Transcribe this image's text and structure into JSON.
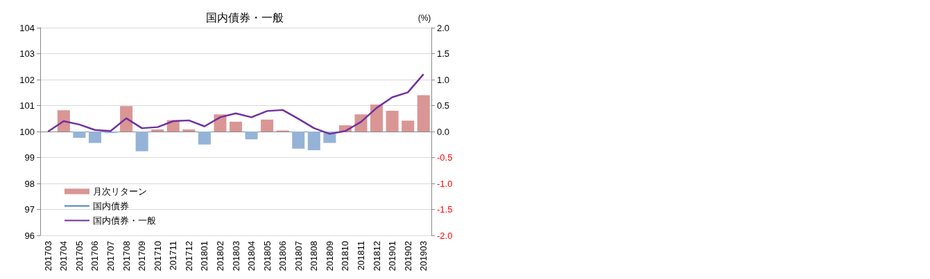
{
  "chart_data": {
    "type": "bar",
    "title": "国内債券・一般",
    "y2label": "(%)",
    "categories": [
      "201703",
      "201704",
      "201705",
      "201706",
      "201707",
      "201708",
      "201709",
      "201710",
      "201711",
      "201712",
      "201801",
      "201802",
      "201803",
      "201804",
      "201805",
      "201806",
      "201807",
      "201808",
      "201809",
      "201810",
      "201811",
      "201812",
      "201901",
      "201902",
      "201903"
    ],
    "series": [
      {
        "name": "月次リターン",
        "axis": "y2",
        "color": "#d99694",
        "colors": [
          "#d99694",
          "#d99694",
          "#95b3d7",
          "#95b3d7",
          "#95b3d7",
          "#d99694",
          "#95b3d7",
          "#d99694",
          "#d99694",
          "#d99694",
          "#95b3d7",
          "#d99694",
          "#d99694",
          "#95b3d7",
          "#d99694",
          "#d99694",
          "#95b3d7",
          "#95b3d7",
          "#95b3d7",
          "#d99694",
          "#d99694",
          "#d99694",
          "#d99694",
          "#d99694",
          "#d99694"
        ],
        "values": [
          null,
          0.41,
          -0.12,
          -0.22,
          -0.03,
          0.49,
          -0.38,
          0.04,
          0.22,
          0.04,
          -0.25,
          0.33,
          0.19,
          -0.15,
          0.23,
          0.02,
          -0.33,
          -0.36,
          -0.22,
          0.12,
          0.33,
          0.52,
          0.4,
          0.21,
          0.7
        ]
      },
      {
        "type": "line",
        "name": "国内債券",
        "color": "#4f81bd",
        "values": [
          null,
          null,
          null,
          null,
          null,
          null,
          null,
          null,
          null,
          null,
          null,
          null,
          null,
          null,
          null,
          null,
          null,
          null,
          null,
          null,
          null,
          null,
          null,
          null,
          null
        ]
      },
      {
        "type": "line",
        "name": "国内債券・一般",
        "color": "#7030a0",
        "values": [
          100,
          100.4,
          100.27,
          100.06,
          100.02,
          100.51,
          100.13,
          100.17,
          100.4,
          100.43,
          100.2,
          100.55,
          100.7,
          100.55,
          100.79,
          100.83,
          100.49,
          100.13,
          99.91,
          100.02,
          100.37,
          100.91,
          101.32,
          101.51,
          102.21
        ]
      }
    ],
    "ylim": [
      96,
      104
    ],
    "yticks": [
      96,
      97,
      98,
      99,
      100,
      101,
      102,
      103,
      104
    ],
    "y2lim": [
      -2,
      2
    ],
    "y2ticks": [
      {
        "value": -2,
        "label": "-2.0"
      },
      -1.5,
      {
        "value": -1,
        "label": "-1.0"
      },
      -0.5,
      {
        "value": 0,
        "label": "0.0"
      },
      0.5,
      {
        "value": 1,
        "label": "1.0"
      },
      1.5,
      {
        "value": 2,
        "label": "2.0"
      }
    ],
    "grid": "y",
    "legend": "bottom left",
    "marker": "none",
    "line_style": "solid"
  }
}
